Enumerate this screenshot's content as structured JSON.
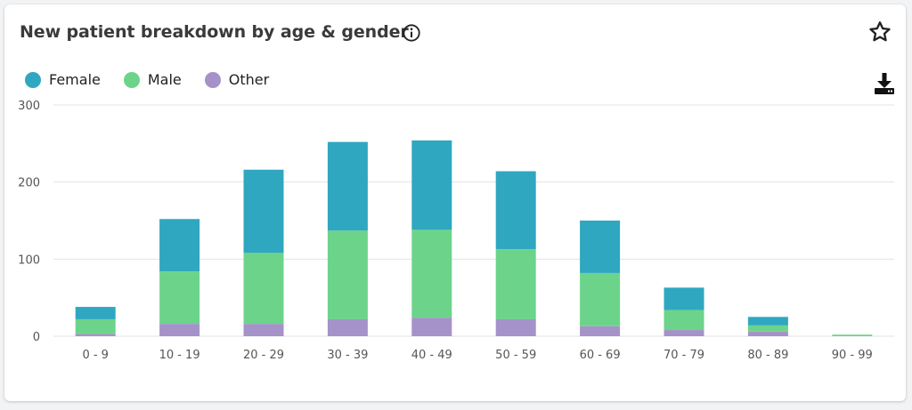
{
  "card": {
    "title": "New patient breakdown by age & gender"
  },
  "icons": {
    "info": "info-circle-icon",
    "favorite": "star-outline-icon",
    "download": "download-icon"
  },
  "colors": {
    "female": "#2fa7c0",
    "male": "#6cd48a",
    "other": "#a592c9",
    "grid": "#e3e3e3",
    "axis_text": "#555555"
  },
  "legend": [
    {
      "label": "Female",
      "color": "#2fa7c0"
    },
    {
      "label": "Male",
      "color": "#6cd48a"
    },
    {
      "label": "Other",
      "color": "#a592c9"
    }
  ],
  "chart_data": {
    "type": "bar",
    "stacked": true,
    "categories": [
      "0 - 9",
      "10 - 19",
      "20 - 29",
      "30 - 39",
      "40 - 49",
      "50 - 59",
      "60 - 69",
      "70 - 79",
      "80 - 89",
      "90 - 99"
    ],
    "series": [
      {
        "name": "Other",
        "color": "#a592c9",
        "values": [
          3,
          16,
          16,
          22,
          24,
          22,
          13,
          8,
          6,
          0
        ]
      },
      {
        "name": "Male",
        "color": "#6cd48a",
        "values": [
          19,
          68,
          92,
          115,
          114,
          91,
          69,
          26,
          8,
          2
        ]
      },
      {
        "name": "Female",
        "color": "#2fa7c0",
        "values": [
          16,
          68,
          108,
          115,
          116,
          101,
          68,
          29,
          11,
          0
        ]
      }
    ],
    "yticks": [
      0,
      100,
      200,
      300
    ],
    "ylim": [
      0,
      300
    ],
    "grid": true,
    "legend_position": "top-left"
  }
}
